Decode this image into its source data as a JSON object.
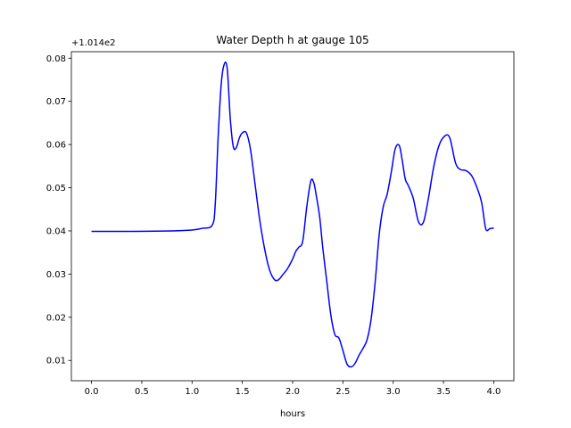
{
  "chart_data": {
    "type": "line",
    "title": "Water Depth h at gauge 105",
    "xlabel": "hours",
    "ylabel": "",
    "y_offset_label": "+1.014e2",
    "y_offset": 101.4,
    "xlim": [
      -0.2,
      4.2
    ],
    "ylim": [
      0.0053,
      0.0815
    ],
    "xticks": [
      0.0,
      0.5,
      1.0,
      1.5,
      2.0,
      2.5,
      3.0,
      3.5,
      4.0
    ],
    "xtick_labels": [
      "0.0",
      "0.5",
      "1.0",
      "1.5",
      "2.0",
      "2.5",
      "3.0",
      "3.5",
      "4.0"
    ],
    "yticks": [
      0.01,
      0.02,
      0.03,
      0.04,
      0.05,
      0.06,
      0.07,
      0.08
    ],
    "ytick_labels": [
      "0.01",
      "0.02",
      "0.03",
      "0.04",
      "0.05",
      "0.06",
      "0.07",
      "0.08"
    ],
    "grid": false,
    "legend": "none",
    "series": [
      {
        "color": "#0000ff",
        "x": [
          0.0,
          0.4,
          0.8,
          1.0,
          1.1,
          1.2,
          1.23,
          1.26,
          1.29,
          1.32,
          1.35,
          1.38,
          1.41,
          1.44,
          1.47,
          1.5,
          1.54,
          1.58,
          1.62,
          1.67,
          1.72,
          1.77,
          1.82,
          1.86,
          1.9,
          1.95,
          2.0,
          2.03,
          2.06,
          2.1,
          2.14,
          2.18,
          2.21,
          2.24,
          2.27,
          2.3,
          2.34,
          2.38,
          2.42,
          2.46,
          2.5,
          2.54,
          2.58,
          2.62,
          2.66,
          2.7,
          2.74,
          2.78,
          2.82,
          2.86,
          2.9,
          2.94,
          2.98,
          3.02,
          3.06,
          3.09,
          3.12,
          3.15,
          3.2,
          3.25,
          3.3,
          3.35,
          3.4,
          3.45,
          3.5,
          3.56,
          3.62,
          3.67,
          3.72,
          3.78,
          3.84,
          3.88,
          3.92,
          3.96,
          4.0
        ],
        "y": [
          0.0399,
          0.0399,
          0.04,
          0.0402,
          0.0406,
          0.0413,
          0.046,
          0.062,
          0.074,
          0.0786,
          0.0775,
          0.066,
          0.0595,
          0.0593,
          0.0615,
          0.0627,
          0.0627,
          0.059,
          0.052,
          0.043,
          0.036,
          0.031,
          0.0287,
          0.0287,
          0.0298,
          0.0313,
          0.0335,
          0.0352,
          0.0362,
          0.0376,
          0.0455,
          0.0515,
          0.0512,
          0.0475,
          0.043,
          0.036,
          0.0282,
          0.0205,
          0.016,
          0.0152,
          0.0123,
          0.0092,
          0.0085,
          0.0093,
          0.0112,
          0.0128,
          0.0148,
          0.0195,
          0.028,
          0.039,
          0.0455,
          0.0485,
          0.0535,
          0.059,
          0.0598,
          0.0563,
          0.052,
          0.0505,
          0.0475,
          0.0422,
          0.042,
          0.0475,
          0.0545,
          0.0594,
          0.0617,
          0.0617,
          0.0557,
          0.0542,
          0.054,
          0.0528,
          0.0496,
          0.0465,
          0.0405,
          0.0405,
          0.0407
        ]
      }
    ]
  }
}
